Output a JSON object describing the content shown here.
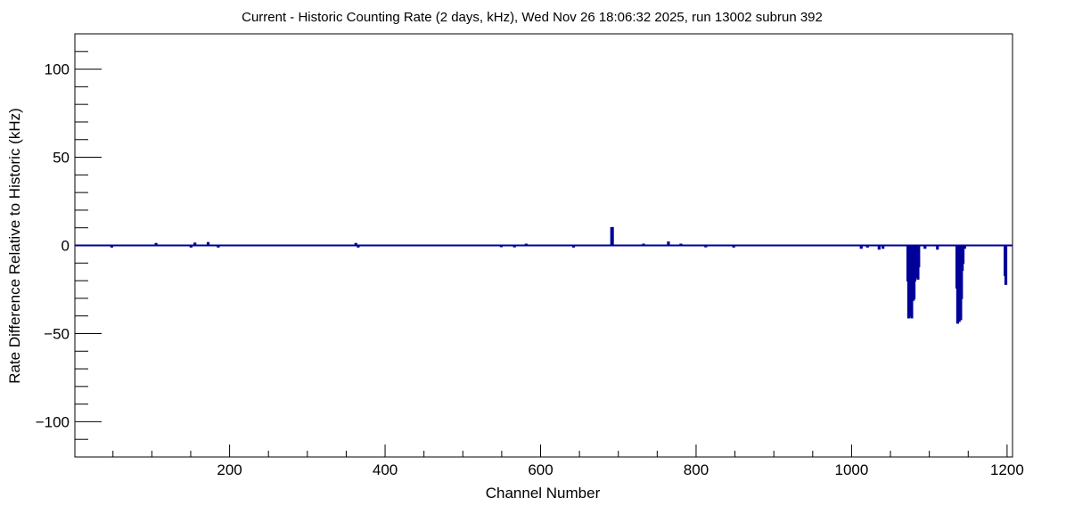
{
  "chart_data": {
    "type": "line",
    "title": "Current - Historic Counting Rate (2 days, kHz), Wed Nov 26 18:06:32 2025, run 13002 subrun 392",
    "xlabel": "Channel Number",
    "ylabel": "Rate Difference Relative to Historic (kHz)",
    "xlim": [
      1,
      1207
    ],
    "ylim": [
      -120,
      120
    ],
    "x_ticks": [
      200,
      400,
      600,
      800,
      1000,
      1200
    ],
    "x_tick_labels": [
      "200",
      "400",
      "600",
      "800",
      "1000",
      "1200"
    ],
    "y_ticks": [
      -100,
      -50,
      0,
      50,
      100
    ],
    "y_tick_labels": [
      "−100",
      "−50",
      "0",
      "50",
      "100"
    ],
    "grid": false,
    "legend": "none",
    "line_color": "#000099",
    "baseline": 0,
    "spikes": [
      {
        "x": 48,
        "y": -0.8
      },
      {
        "x": 105,
        "y": 1.0
      },
      {
        "x": 150,
        "y": -0.8
      },
      {
        "x": 155,
        "y": 1.2
      },
      {
        "x": 172,
        "y": 1.5
      },
      {
        "x": 185,
        "y": -0.8
      },
      {
        "x": 362,
        "y": 1.0
      },
      {
        "x": 365,
        "y": -0.8
      },
      {
        "x": 549,
        "y": -0.6
      },
      {
        "x": 566,
        "y": -0.7
      },
      {
        "x": 581,
        "y": 0.6
      },
      {
        "x": 642,
        "y": -0.8
      },
      {
        "x": 691,
        "y": 10.0
      },
      {
        "x": 692,
        "y": 10.0
      },
      {
        "x": 732,
        "y": 0.6
      },
      {
        "x": 764,
        "y": 1.8
      },
      {
        "x": 780,
        "y": 0.6
      },
      {
        "x": 812,
        "y": -0.7
      },
      {
        "x": 848,
        "y": -0.8
      },
      {
        "x": 1012,
        "y": -1.5
      },
      {
        "x": 1020,
        "y": -0.8
      },
      {
        "x": 1035,
        "y": -2.0
      },
      {
        "x": 1040,
        "y": -1.5
      },
      {
        "x": 1072,
        "y": -20.0
      },
      {
        "x": 1073,
        "y": -41.0
      },
      {
        "x": 1074,
        "y": -40.0
      },
      {
        "x": 1077,
        "y": -41.0
      },
      {
        "x": 1078,
        "y": -20.0
      },
      {
        "x": 1079,
        "y": -31.0
      },
      {
        "x": 1080,
        "y": -30.0
      },
      {
        "x": 1081,
        "y": -20.0
      },
      {
        "x": 1083,
        "y": -18.0
      },
      {
        "x": 1084,
        "y": -13.0
      },
      {
        "x": 1085,
        "y": -19.0
      },
      {
        "x": 1086,
        "y": -12.0
      },
      {
        "x": 1094,
        "y": -1.5
      },
      {
        "x": 1110,
        "y": -2.0
      },
      {
        "x": 1135,
        "y": -24.0
      },
      {
        "x": 1136,
        "y": -44.0
      },
      {
        "x": 1137,
        "y": -20.0
      },
      {
        "x": 1138,
        "y": -43.0
      },
      {
        "x": 1139,
        "y": -30.0
      },
      {
        "x": 1140,
        "y": -42.0
      },
      {
        "x": 1141,
        "y": -30.0
      },
      {
        "x": 1142,
        "y": -14.0
      },
      {
        "x": 1143,
        "y": -10.0
      },
      {
        "x": 1145,
        "y": -1.5
      },
      {
        "x": 1197,
        "y": -17.0
      },
      {
        "x": 1198,
        "y": -22.0
      }
    ]
  }
}
